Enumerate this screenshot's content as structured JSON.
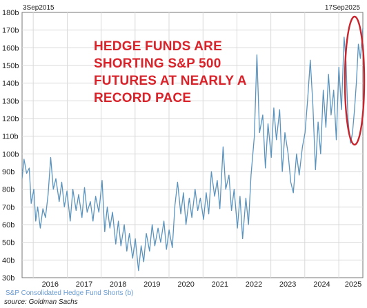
{
  "chart_data": {
    "type": "line",
    "title": "",
    "xlabel": "",
    "ylabel": "",
    "start_label": "3Sep2015",
    "end_label": "17Sep2025",
    "x_range": [
      "2015-09-03",
      "2025-09-17"
    ],
    "x_tick_labels": [
      "2016",
      "2017",
      "2018",
      "2019",
      "2020",
      "2021",
      "2022",
      "2023",
      "2024",
      "2025"
    ],
    "y_tick_labels": [
      "30b",
      "40b",
      "50b",
      "60b",
      "70b",
      "80b",
      "90b",
      "100b",
      "110b",
      "120b",
      "130b",
      "140b",
      "150b",
      "160b",
      "170b",
      "180b"
    ],
    "ylim": [
      30,
      180
    ],
    "grid": true,
    "series": [
      {
        "name": "S&P Consolidated Hedge Fund Shorts",
        "color": "#5a93bd",
        "points": [
          [
            "2015-09-03",
            86
          ],
          [
            "2015-09-24",
            97
          ],
          [
            "2015-10-22",
            89
          ],
          [
            "2015-11-19",
            92
          ],
          [
            "2015-12-10",
            72
          ],
          [
            "2016-01-07",
            80
          ],
          [
            "2016-01-28",
            62
          ],
          [
            "2016-02-18",
            70
          ],
          [
            "2016-03-17",
            58
          ],
          [
            "2016-04-14",
            69
          ],
          [
            "2016-05-12",
            64
          ],
          [
            "2016-06-09",
            77
          ],
          [
            "2016-07-07",
            98
          ],
          [
            "2016-08-04",
            80
          ],
          [
            "2016-09-01",
            86
          ],
          [
            "2016-10-06",
            73
          ],
          [
            "2016-11-03",
            84
          ],
          [
            "2016-12-01",
            70
          ],
          [
            "2016-12-29",
            79
          ],
          [
            "2017-02-02",
            62
          ],
          [
            "2017-03-02",
            80
          ],
          [
            "2017-04-06",
            68
          ],
          [
            "2017-05-04",
            77
          ],
          [
            "2017-06-08",
            64
          ],
          [
            "2017-07-06",
            81
          ],
          [
            "2017-08-03",
            67
          ],
          [
            "2017-09-07",
            73
          ],
          [
            "2017-10-05",
            62
          ],
          [
            "2017-11-02",
            76
          ],
          [
            "2017-12-07",
            67
          ],
          [
            "2018-01-11",
            85
          ],
          [
            "2018-02-08",
            56
          ],
          [
            "2018-03-08",
            70
          ],
          [
            "2018-04-05",
            58
          ],
          [
            "2018-05-03",
            67
          ],
          [
            "2018-06-07",
            49
          ],
          [
            "2018-07-05",
            62
          ],
          [
            "2018-08-02",
            48
          ],
          [
            "2018-09-06",
            60
          ],
          [
            "2018-10-04",
            45
          ],
          [
            "2018-11-01",
            55
          ],
          [
            "2018-12-06",
            41
          ],
          [
            "2019-01-03",
            52
          ],
          [
            "2019-02-07",
            34
          ],
          [
            "2019-03-07",
            48
          ],
          [
            "2019-04-04",
            39
          ],
          [
            "2019-05-02",
            55
          ],
          [
            "2019-06-06",
            45
          ],
          [
            "2019-07-04",
            60
          ],
          [
            "2019-08-01",
            48
          ],
          [
            "2019-09-05",
            58
          ],
          [
            "2019-10-03",
            50
          ],
          [
            "2019-11-07",
            62
          ],
          [
            "2019-12-05",
            46
          ],
          [
            "2020-01-02",
            57
          ],
          [
            "2020-02-06",
            47
          ],
          [
            "2020-03-05",
            71
          ],
          [
            "2020-04-02",
            84
          ],
          [
            "2020-05-07",
            66
          ],
          [
            "2020-06-04",
            78
          ],
          [
            "2020-07-02",
            60
          ],
          [
            "2020-08-06",
            75
          ],
          [
            "2020-09-03",
            64
          ],
          [
            "2020-10-08",
            80
          ],
          [
            "2020-11-05",
            68
          ],
          [
            "2020-12-03",
            75
          ],
          [
            "2021-01-07",
            63
          ],
          [
            "2021-02-04",
            78
          ],
          [
            "2021-03-04",
            66
          ],
          [
            "2021-04-01",
            90
          ],
          [
            "2021-05-06",
            76
          ],
          [
            "2021-06-03",
            85
          ],
          [
            "2021-07-01",
            69
          ],
          [
            "2021-08-05",
            104
          ],
          [
            "2021-09-02",
            80
          ],
          [
            "2021-10-07",
            88
          ],
          [
            "2021-11-04",
            68
          ],
          [
            "2021-12-02",
            80
          ],
          [
            "2022-01-06",
            58
          ],
          [
            "2022-02-03",
            76
          ],
          [
            "2022-03-03",
            52
          ],
          [
            "2022-04-07",
            75
          ],
          [
            "2022-05-05",
            60
          ],
          [
            "2022-06-02",
            88
          ],
          [
            "2022-07-07",
            110
          ],
          [
            "2022-08-04",
            156
          ],
          [
            "2022-09-01",
            112
          ],
          [
            "2022-10-06",
            122
          ],
          [
            "2022-11-03",
            92
          ],
          [
            "2022-12-01",
            117
          ],
          [
            "2023-01-05",
            98
          ],
          [
            "2023-02-02",
            126
          ],
          [
            "2023-03-02",
            108
          ],
          [
            "2023-04-06",
            125
          ],
          [
            "2023-05-04",
            90
          ],
          [
            "2023-06-01",
            112
          ],
          [
            "2023-07-06",
            100
          ],
          [
            "2023-08-03",
            84
          ],
          [
            "2023-08-31",
            78
          ],
          [
            "2023-10-05",
            100
          ],
          [
            "2023-11-02",
            88
          ],
          [
            "2023-12-07",
            104
          ],
          [
            "2024-01-04",
            112
          ],
          [
            "2024-02-01",
            131
          ],
          [
            "2024-02-29",
            153
          ],
          [
            "2024-03-28",
            128
          ],
          [
            "2024-04-25",
            91
          ],
          [
            "2024-05-23",
            118
          ],
          [
            "2024-06-20",
            100
          ],
          [
            "2024-07-18",
            136
          ],
          [
            "2024-08-15",
            115
          ],
          [
            "2024-09-12",
            145
          ],
          [
            "2024-10-10",
            122
          ],
          [
            "2024-11-07",
            136
          ],
          [
            "2024-12-05",
            108
          ],
          [
            "2025-01-02",
            149
          ],
          [
            "2025-01-30",
            125
          ],
          [
            "2025-02-27",
            166
          ],
          [
            "2025-03-20",
            152
          ],
          [
            "2025-04-10",
            120
          ],
          [
            "2025-04-24",
            112
          ],
          [
            "2025-05-08",
            106
          ],
          [
            "2025-05-29",
            112
          ],
          [
            "2025-06-19",
            125
          ],
          [
            "2025-07-10",
            141
          ],
          [
            "2025-07-31",
            162
          ],
          [
            "2025-08-21",
            154
          ],
          [
            "2025-09-17",
            171
          ]
        ]
      }
    ],
    "annotation": [
      "HEDGE FUNDS ARE",
      "SHORTING S&P 500",
      "FUTURES AT NEARLY A",
      "RECORD PACE"
    ],
    "annotation_color": "#d9232b",
    "highlight_color": "#c9252e",
    "series_caption": "S&P Consolidated Hedge Fund Shorts (b)",
    "source": "source: Goldman Sachs"
  }
}
